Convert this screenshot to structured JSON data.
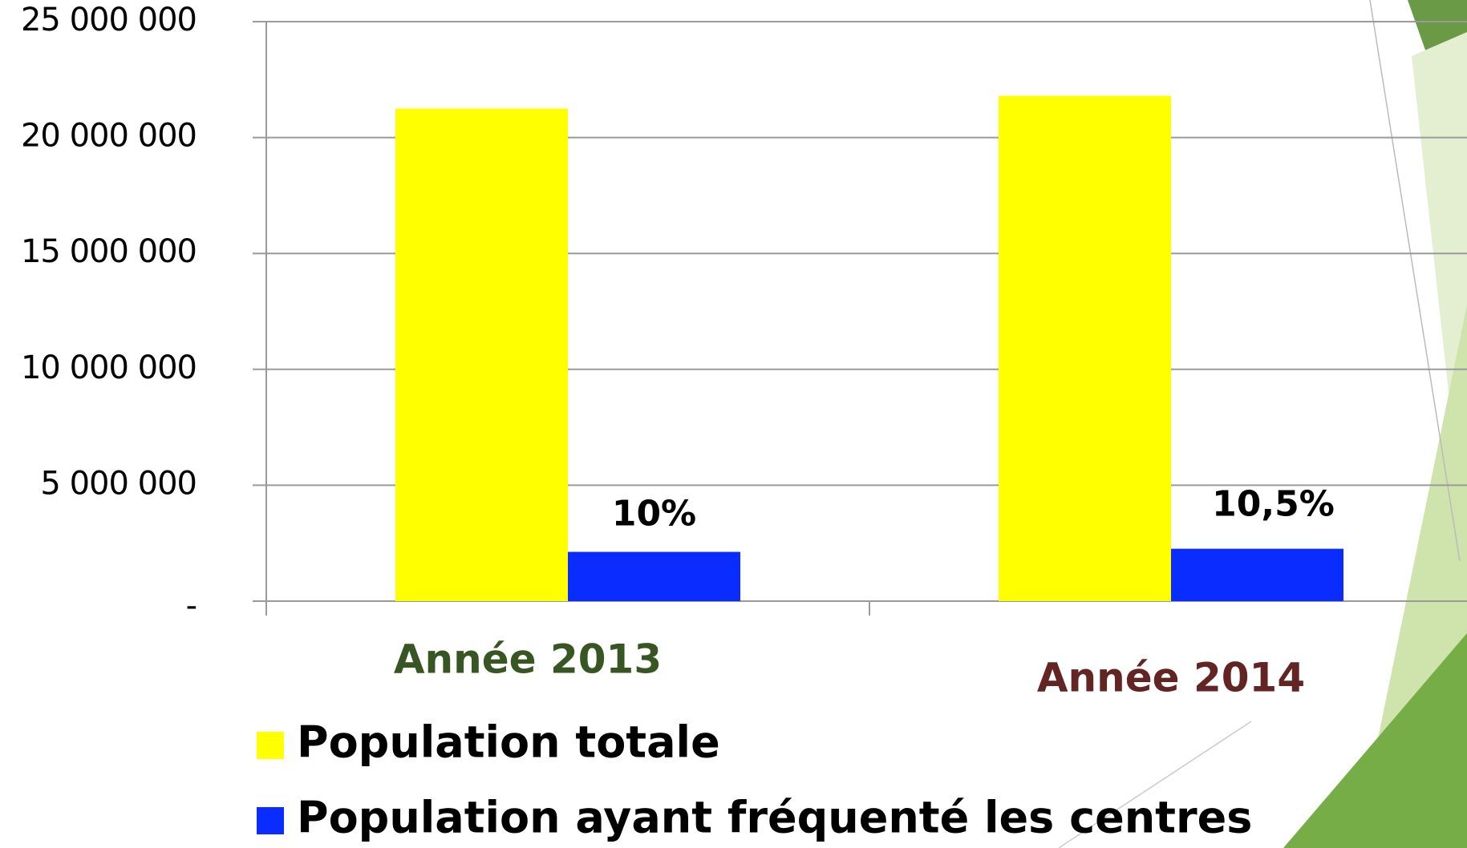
{
  "chart_data": {
    "type": "bar",
    "categories": [
      "Année 2013",
      "Année 2014"
    ],
    "category_colors": [
      "#375623",
      "#632523"
    ],
    "series": [
      {
        "name": "Population totale",
        "color": "#ffff00",
        "values": [
          21250000,
          21800000
        ]
      },
      {
        "name": "Population ayant fréquenté les centres",
        "color": "#0a2cff",
        "values": [
          2125000,
          2260000
        ]
      }
    ],
    "annotations": [
      "10%",
      "10,5%"
    ],
    "ylim": [
      0,
      25000000
    ],
    "yticks": [
      {
        "value": 0,
        "label": "-"
      },
      {
        "value": 5000000,
        "label": "5 000 000"
      },
      {
        "value": 10000000,
        "label": "10 000 000"
      },
      {
        "value": 15000000,
        "label": "15 000 000"
      },
      {
        "value": 20000000,
        "label": "20 000 000"
      },
      {
        "value": 25000000,
        "label": "25 000 000"
      }
    ],
    "grid": true
  }
}
